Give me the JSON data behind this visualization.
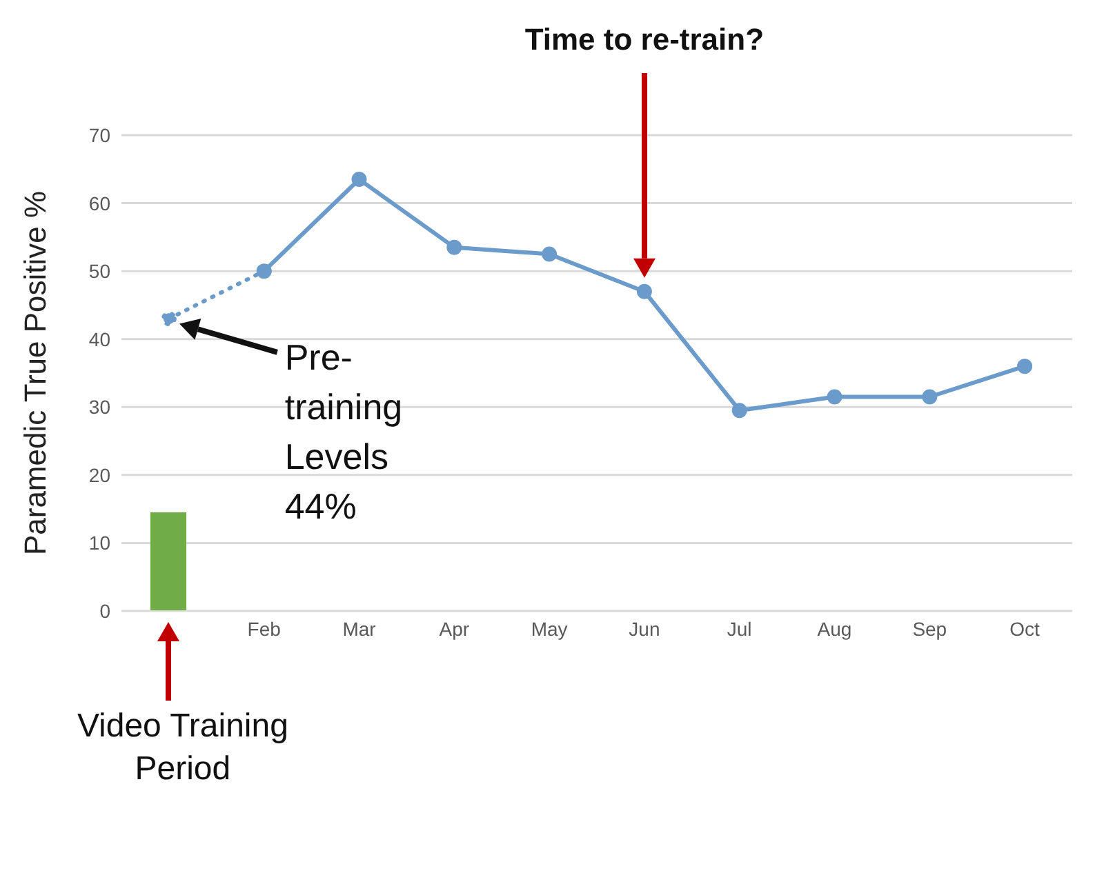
{
  "chart_data": {
    "type": "line",
    "ylabel": "Paramedic True Positive %",
    "categories": [
      null,
      "Feb",
      "Mar",
      "Apr",
      "May",
      "Jun",
      "Jul",
      "Aug",
      "Sep",
      "Oct"
    ],
    "series": [
      {
        "type": "bar",
        "color": "#70ad47",
        "values": [
          14.5,
          null,
          null,
          null,
          null,
          null,
          null,
          null,
          null,
          null
        ]
      },
      {
        "color": "#6b9bcb",
        "line_style": "dotted",
        "values": [
          43,
          50,
          null,
          null,
          null,
          null,
          null,
          null,
          null,
          null
        ]
      },
      {
        "color": "#6b9bcb",
        "line_style": "solid",
        "values": [
          null,
          50,
          63.5,
          53.5,
          52.5,
          47,
          29.5,
          31.5,
          31.5,
          36
        ]
      }
    ],
    "ylim": [
      0,
      70
    ],
    "yticks": [
      0,
      10,
      20,
      30,
      40,
      50,
      60,
      70
    ],
    "grid": "y",
    "marker": "circle",
    "annotations": [
      "Time to re-train?",
      "Pre-training Levels 44%",
      "Video Training Period"
    ]
  }
}
